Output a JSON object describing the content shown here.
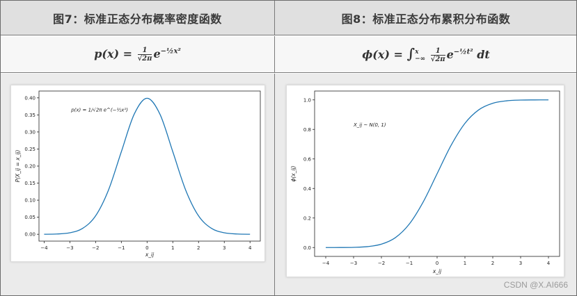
{
  "headers": {
    "left": "图7：标准正态分布概率密度函数",
    "right": "图8：标准正态分布累积分布函数"
  },
  "formulas": {
    "left": {
      "lhs": "p(x) =",
      "num": "1",
      "den": "√2π",
      "base": "e",
      "exp": "−½x²"
    },
    "right": {
      "lhs": "ϕ(x) =",
      "int": "∫",
      "upper": "x",
      "lower": "−∞",
      "num": "1",
      "den": "√2π",
      "base": "e",
      "exp": "−½t²",
      "tail": "dt"
    }
  },
  "watermark": "CSDN @X.AI666",
  "chart_data": [
    {
      "type": "line",
      "title": "",
      "xlabel": "x_ij",
      "ylabel": "P(X_ij = x_ij)",
      "xlim": [
        -4.2,
        4.4
      ],
      "ylim": [
        -0.02,
        0.42
      ],
      "xticks": [
        -4,
        -3,
        -2,
        -1,
        0,
        1,
        2,
        3,
        4
      ],
      "yticks": [
        0.0,
        0.05,
        0.1,
        0.15,
        0.2,
        0.25,
        0.3,
        0.35,
        0.4
      ],
      "xtick_labels": [
        "−4",
        "−3",
        "−2",
        "−1",
        "0",
        "1",
        "2",
        "3",
        "4"
      ],
      "ytick_labels": [
        "0.00",
        "0.05",
        "0.10",
        "0.15",
        "0.20",
        "0.25",
        "0.30",
        "0.35",
        "0.40"
      ],
      "annotation": "p(x) = 1/√2π e^(−½x²)",
      "grid": false,
      "color": "#1f77b4",
      "x": [
        -4.0,
        -3.5,
        -3.0,
        -2.5,
        -2.0,
        -1.5,
        -1.0,
        -0.5,
        0.0,
        0.5,
        1.0,
        1.5,
        2.0,
        2.5,
        3.0,
        3.5,
        4.0
      ],
      "y": [
        0.0001,
        0.0009,
        0.0044,
        0.0175,
        0.054,
        0.1295,
        0.242,
        0.3521,
        0.3989,
        0.3521,
        0.242,
        0.1295,
        0.054,
        0.0175,
        0.0044,
        0.0009,
        0.0001
      ]
    },
    {
      "type": "line",
      "title": "",
      "xlabel": "x_ij",
      "ylabel": "ϕ(x_ij)",
      "xlim": [
        -4.4,
        4.4
      ],
      "ylim": [
        -0.06,
        1.06
      ],
      "xticks": [
        -4,
        -3,
        -2,
        -1,
        0,
        1,
        2,
        3,
        4
      ],
      "yticks": [
        0.0,
        0.2,
        0.4,
        0.6,
        0.8,
        1.0
      ],
      "xtick_labels": [
        "−4",
        "−3",
        "−2",
        "−1",
        "0",
        "1",
        "2",
        "3",
        "4"
      ],
      "ytick_labels": [
        "0.0",
        "0.2",
        "0.4",
        "0.6",
        "0.8",
        "1.0"
      ],
      "annotation": "X_ij ~ N(0, 1)",
      "grid": false,
      "color": "#1f77b4",
      "x": [
        -4.0,
        -3.5,
        -3.0,
        -2.5,
        -2.0,
        -1.5,
        -1.0,
        -0.5,
        0.0,
        0.5,
        1.0,
        1.5,
        2.0,
        2.5,
        3.0,
        3.5,
        4.0
      ],
      "y": [
        0.0,
        0.0002,
        0.0013,
        0.0062,
        0.0228,
        0.0668,
        0.1587,
        0.3085,
        0.5,
        0.6915,
        0.8413,
        0.9332,
        0.9772,
        0.9938,
        0.9987,
        0.9998,
        1.0
      ]
    }
  ]
}
